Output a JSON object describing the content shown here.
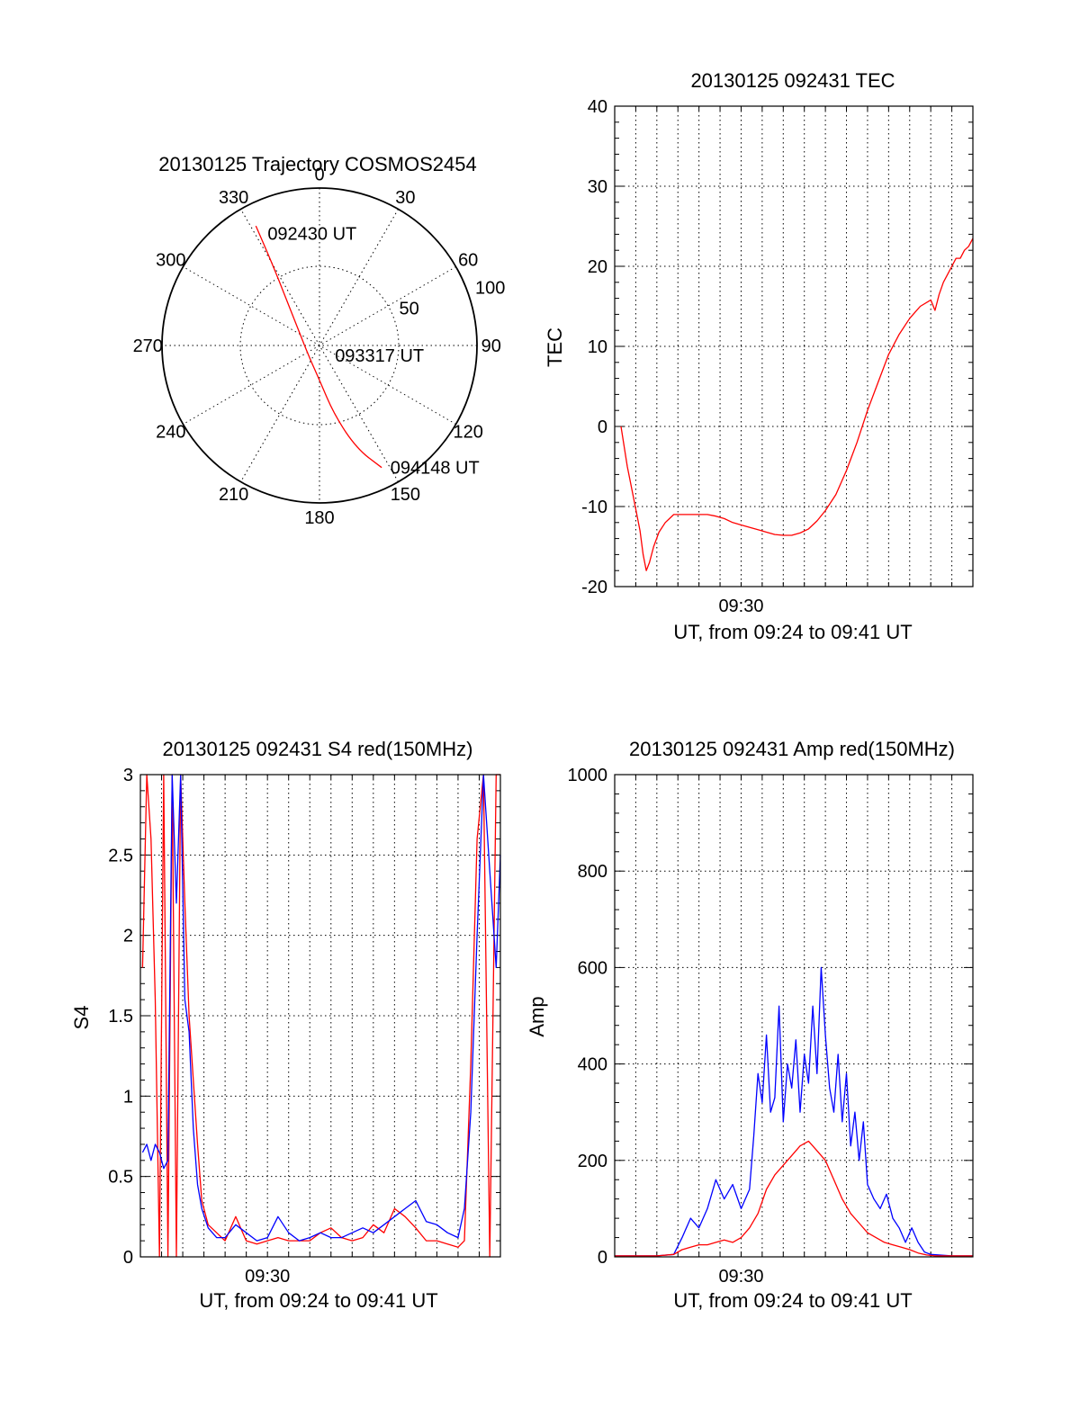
{
  "chart_data": [
    {
      "type": "polar-trajectory",
      "title": "20130125 Trajectory COSMOS2454",
      "azimuth_labels": [
        "0",
        "30",
        "60",
        "90",
        "120",
        "150",
        "180",
        "210",
        "240",
        "270",
        "300",
        "330"
      ],
      "radial_labels": [
        "50",
        "100"
      ],
      "radial_max": 100,
      "line_color": "#ff0000",
      "series": [
        {
          "points": [
            {
              "az": 332,
              "r": 86
            },
            {
              "az": 330,
              "r": 60
            },
            {
              "az": 325,
              "r": 38
            },
            {
              "az": 305,
              "r": 16
            },
            {
              "az": 220,
              "r": 10
            },
            {
              "az": 180,
              "r": 22
            },
            {
              "az": 168,
              "r": 45
            },
            {
              "az": 160,
              "r": 70
            },
            {
              "az": 153,
              "r": 87
            }
          ]
        }
      ],
      "annotations": [
        {
          "text": "092430 UT",
          "az": 335,
          "r": 78
        },
        {
          "text": "093317 UT",
          "az": 125,
          "r": 12
        },
        {
          "text": "094148 UT",
          "az": 150,
          "r": 90
        }
      ]
    },
    {
      "type": "line",
      "title": "20130125 092431 TEC",
      "xlabel": "UT, from 09:24 to 09:41 UT",
      "ylabel": "TEC",
      "x_tick_labels": [
        {
          "x": 6,
          "label": "09:30"
        }
      ],
      "xlim": [
        0,
        17
      ],
      "ylim": [
        -20,
        40
      ],
      "yticks": [
        -20,
        -10,
        0,
        10,
        20,
        30,
        40
      ],
      "series": [
        {
          "color": "#ff0000",
          "x": [
            0.3,
            0.6,
            0.9,
            1.2,
            1.35,
            1.5,
            1.65,
            1.85,
            2.1,
            2.4,
            2.6,
            2.8,
            3.2,
            3.6,
            4.0,
            4.4,
            4.8,
            5.2,
            5.6,
            6.0,
            6.4,
            6.8,
            7.2,
            7.6,
            8.0,
            8.4,
            8.8,
            9.2,
            9.6,
            10.0,
            10.5,
            11.0,
            11.5,
            12.0,
            12.5,
            13.0,
            13.5,
            14.0,
            14.5,
            15.0,
            15.2,
            15.4,
            15.6,
            15.8,
            16.0,
            16.2,
            16.4,
            16.6,
            16.8,
            17.0
          ],
          "y": [
            0,
            -5,
            -9,
            -13,
            -16,
            -18,
            -17,
            -15,
            -13.2,
            -12,
            -11.5,
            -11,
            -11,
            -11,
            -11,
            -11,
            -11.2,
            -11.5,
            -12,
            -12.3,
            -12.6,
            -12.9,
            -13.2,
            -13.5,
            -13.6,
            -13.6,
            -13.3,
            -12.8,
            -11.8,
            -10.5,
            -8.5,
            -5.5,
            -2,
            2,
            5.5,
            9,
            11.5,
            13.5,
            15,
            15.8,
            14.5,
            16.5,
            18,
            19,
            20,
            21,
            21,
            22,
            22.5,
            23.5
          ]
        }
      ]
    },
    {
      "type": "line",
      "title": "20130125 092431 S4 red(150MHz)",
      "xlabel": "UT, from 09:24 to 09:41 UT",
      "ylabel": "S4",
      "x_tick_labels": [
        {
          "x": 6,
          "label": "09:30"
        }
      ],
      "xlim": [
        0,
        17
      ],
      "ylim": [
        0,
        3
      ],
      "yticks": [
        0,
        0.5,
        1,
        1.5,
        2,
        2.5,
        3
      ],
      "ytick_labels": [
        "0",
        "0.5",
        "1",
        "1.5",
        "2",
        "2.5",
        "3"
      ],
      "series": [
        {
          "color": "#ff0000",
          "x": [
            0.1,
            0.3,
            0.5,
            0.7,
            0.9,
            1.1,
            1.3,
            1.5,
            1.7,
            1.9,
            2.1,
            2.3,
            2.5,
            2.7,
            2.9,
            3.2,
            3.6,
            4.0,
            4.5,
            5.0,
            5.5,
            6.0,
            6.5,
            7.0,
            7.5,
            8.0,
            8.5,
            9.0,
            9.5,
            10.0,
            10.5,
            11.0,
            11.5,
            12.0,
            12.5,
            13.0,
            13.5,
            14.0,
            14.5,
            15.0,
            15.3,
            15.6,
            15.9,
            16.2,
            16.5,
            16.8,
            17.0
          ],
          "y": [
            1.8,
            3,
            2.6,
            1.6,
            0,
            3,
            0,
            3,
            0,
            3,
            2.2,
            1.5,
            1.1,
            0.7,
            0.35,
            0.2,
            0.15,
            0.1,
            0.25,
            0.1,
            0.08,
            0.1,
            0.12,
            0.1,
            0.1,
            0.1,
            0.15,
            0.18,
            0.12,
            0.1,
            0.12,
            0.2,
            0.15,
            0.3,
            0.25,
            0.18,
            0.1,
            0.1,
            0.08,
            0.06,
            0.1,
            1.2,
            2.6,
            3,
            0,
            3,
            3
          ]
        },
        {
          "color": "#0000ff",
          "x": [
            0.1,
            0.3,
            0.5,
            0.7,
            0.9,
            1.1,
            1.3,
            1.5,
            1.7,
            1.9,
            2.1,
            2.3,
            2.5,
            2.7,
            2.9,
            3.2,
            3.6,
            4.0,
            4.5,
            5.0,
            5.5,
            6.0,
            6.5,
            7.0,
            7.5,
            8.0,
            8.5,
            9.0,
            9.5,
            10.0,
            10.5,
            11.0,
            11.5,
            12.0,
            12.5,
            13.0,
            13.5,
            14.0,
            14.5,
            15.0,
            15.3,
            15.6,
            15.9,
            16.2,
            16.5,
            16.8,
            17.0
          ],
          "y": [
            0.65,
            0.7,
            0.6,
            0.7,
            0.65,
            0.55,
            0.6,
            3,
            2.2,
            3,
            1.6,
            1.4,
            0.8,
            0.45,
            0.3,
            0.18,
            0.12,
            0.12,
            0.2,
            0.15,
            0.1,
            0.12,
            0.25,
            0.15,
            0.1,
            0.12,
            0.15,
            0.12,
            0.12,
            0.15,
            0.18,
            0.15,
            0.2,
            0.25,
            0.3,
            0.35,
            0.22,
            0.2,
            0.15,
            0.12,
            0.3,
            0.9,
            2,
            3,
            2.4,
            1.8,
            2.5
          ]
        }
      ]
    },
    {
      "type": "line",
      "title": "20130125 092431 Amp red(150MHz)",
      "xlabel": "UT, from 09:24 to 09:41 UT",
      "ylabel": "Amp",
      "x_tick_labels": [
        {
          "x": 6,
          "label": "09:30"
        }
      ],
      "xlim": [
        0,
        17
      ],
      "ylim": [
        0,
        1000
      ],
      "yticks": [
        0,
        200,
        400,
        600,
        800,
        1000
      ],
      "ytick_labels": [
        "0",
        "200",
        "400",
        "600",
        "800",
        "1000"
      ],
      "series": [
        {
          "color": "#0000ff",
          "x": [
            0,
            1,
            2,
            2.8,
            3.2,
            3.6,
            4.0,
            4.4,
            4.8,
            5.2,
            5.6,
            6.0,
            6.4,
            6.6,
            6.8,
            7.0,
            7.2,
            7.4,
            7.6,
            7.8,
            8.0,
            8.2,
            8.4,
            8.6,
            8.8,
            9.0,
            9.2,
            9.4,
            9.6,
            9.8,
            10.0,
            10.2,
            10.4,
            10.6,
            10.8,
            11.0,
            11.2,
            11.4,
            11.6,
            11.8,
            12.0,
            12.3,
            12.6,
            12.9,
            13.2,
            13.5,
            13.8,
            14.1,
            14.4,
            14.7,
            15,
            16,
            17
          ],
          "y": [
            2,
            2,
            2,
            5,
            40,
            80,
            60,
            100,
            160,
            120,
            150,
            100,
            140,
            250,
            380,
            320,
            460,
            300,
            330,
            520,
            280,
            400,
            350,
            450,
            300,
            420,
            360,
            520,
            380,
            600,
            460,
            350,
            300,
            420,
            280,
            380,
            230,
            300,
            200,
            280,
            150,
            120,
            100,
            130,
            80,
            60,
            30,
            60,
            30,
            10,
            5,
            2,
            2
          ]
        },
        {
          "color": "#ff0000",
          "x": [
            0,
            1,
            2,
            2.8,
            3.2,
            3.6,
            4.0,
            4.4,
            4.8,
            5.2,
            5.6,
            6.0,
            6.4,
            6.8,
            7.2,
            7.6,
            8.0,
            8.4,
            8.8,
            9.2,
            9.6,
            10.0,
            10.4,
            10.8,
            11.2,
            11.6,
            12.0,
            12.4,
            12.8,
            13.2,
            13.6,
            14.0,
            14.4,
            14.8,
            15.2,
            16,
            17
          ],
          "y": [
            2,
            2,
            2,
            5,
            15,
            20,
            25,
            25,
            30,
            35,
            30,
            40,
            60,
            90,
            140,
            170,
            190,
            210,
            230,
            240,
            220,
            200,
            160,
            120,
            90,
            70,
            50,
            40,
            30,
            25,
            20,
            15,
            8,
            4,
            2,
            2,
            2
          ]
        }
      ]
    }
  ]
}
